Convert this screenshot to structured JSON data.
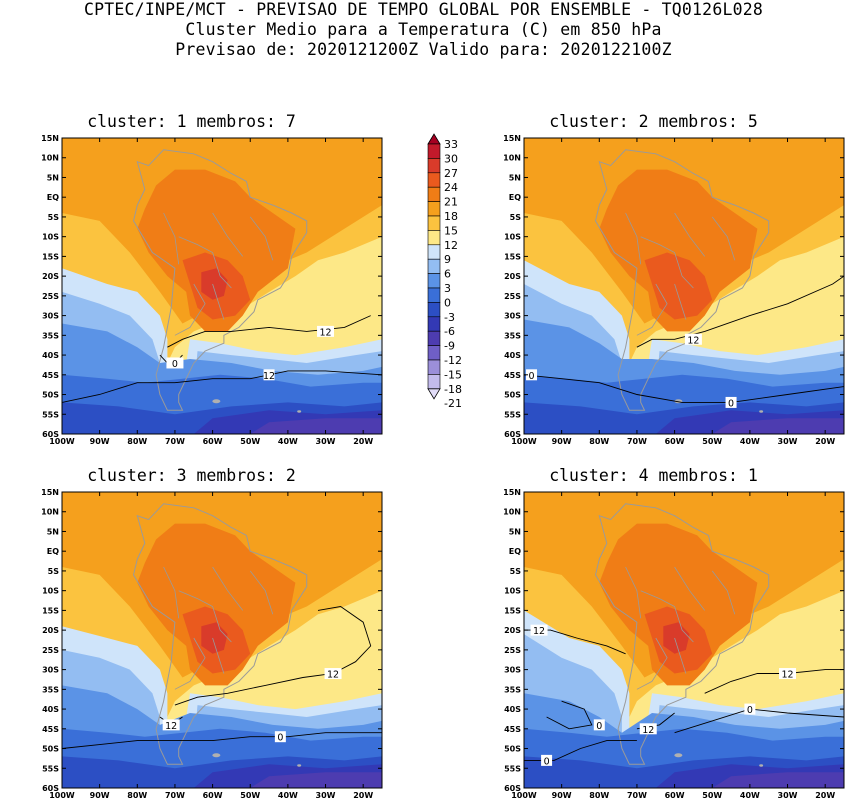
{
  "header": {
    "line1": "CPTEC/INPE/MCT - PREVISAO DE TEMPO GLOBAL POR ENSEMBLE - TQ0126L028",
    "line2": "Cluster Medio para a Temperatura (C) em 850 hPa",
    "line3": "Previsao de: 2020121200Z   Valido para: 2020122100Z"
  },
  "axes": {
    "lat_labels": [
      "15N",
      "10N",
      "5N",
      "EQ",
      "5S",
      "10S",
      "15S",
      "20S",
      "25S",
      "30S",
      "35S",
      "40S",
      "45S",
      "50S",
      "55S",
      "60S"
    ],
    "lon_labels": [
      "100W",
      "90W",
      "80W",
      "70W",
      "60W",
      "50W",
      "40W",
      "30W",
      "20W"
    ]
  },
  "colorbar": {
    "levels": [
      "33",
      "30",
      "27",
      "24",
      "21",
      "18",
      "15",
      "12",
      "9",
      "6",
      "3",
      "0",
      "-3",
      "-6",
      "-9",
      "-12",
      "-15",
      "-18",
      "-21"
    ],
    "colors": [
      "#a50021",
      "#c21a2b",
      "#d93b2a",
      "#ea5a1e",
      "#f07d16",
      "#f5a01d",
      "#fbc33f",
      "#fde887",
      "#cfe4fa",
      "#93bdf2",
      "#5b93e6",
      "#3a6fd8",
      "#2c4fc4",
      "#3339b5",
      "#4d3cb0",
      "#6f5fc6",
      "#9b8fd9",
      "#c3bbec",
      "#e2ddf8"
    ]
  },
  "panels": [
    {
      "title": "cluster: 1   membros: 7",
      "contour_labels": [
        "12",
        "12",
        "0"
      ]
    },
    {
      "title": "cluster: 2   membros: 5",
      "contour_labels": [
        "12",
        "0",
        "0"
      ]
    },
    {
      "title": "cluster: 3   membros: 2",
      "contour_labels": [
        "12",
        "12",
        "0"
      ]
    },
    {
      "title": "cluster: 4   membros: 1",
      "contour_labels": [
        "12",
        "12",
        "12",
        "0",
        "0",
        "0"
      ]
    }
  ]
}
